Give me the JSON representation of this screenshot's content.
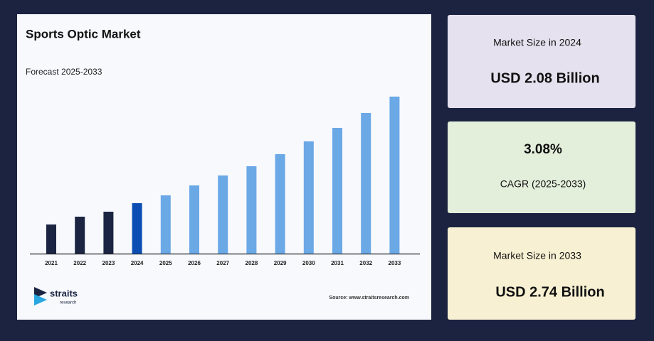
{
  "chart_data": {
    "type": "bar",
    "title": "Sports Optic Market",
    "subtitle": "Forecast 2025-2033",
    "categories": [
      "2021",
      "2022",
      "2023",
      "2024",
      "2025",
      "2026",
      "2027",
      "2028",
      "2029",
      "2030",
      "2031",
      "2032",
      "2033"
    ],
    "values": [
      41,
      52,
      59,
      71,
      82,
      96,
      110,
      123,
      140,
      158,
      177,
      198,
      221
    ],
    "colors": [
      "#1b2542",
      "#1b2542",
      "#1b2542",
      "#0b4db3",
      "#6aa8e6",
      "#6aa8e6",
      "#6aa8e6",
      "#6aa8e6",
      "#6aa8e6",
      "#6aa8e6",
      "#6aa8e6",
      "#6aa8e6",
      "#6aa8e6"
    ],
    "source": "Source: www.straitsresearch.com"
  },
  "logo": {
    "name": "straits",
    "sub": "research"
  },
  "cards": [
    {
      "label": "Market Size in 2024",
      "value": "USD 2.08 Billion"
    },
    {
      "value": "3.08%",
      "label": "CAGR (2025-2033)"
    },
    {
      "label": "Market Size in 2033",
      "value": "USD 2.74 Billion"
    }
  ]
}
